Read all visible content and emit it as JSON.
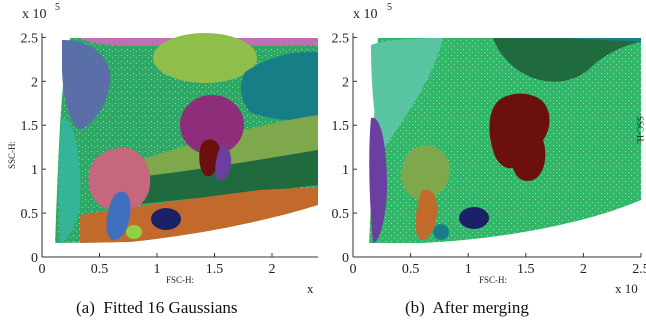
{
  "chart_data": [
    {
      "type": "scatter",
      "panel_label": "(a)",
      "caption": "Fitted 16 Gaussians",
      "xlabel": "FSC-H:",
      "ylabel": "SSC-H:",
      "x_exponent_label": "x",
      "y_exponent_label": "x 10",
      "y_exponent_power": "5",
      "xlim": [
        0,
        2.4
      ],
      "ylim": [
        0,
        2.55
      ],
      "x_ticks": [
        "0",
        "0.5",
        "1",
        "1.5",
        "2"
      ],
      "x_tick_values": [
        0,
        0.5,
        1,
        1.5,
        2
      ],
      "y_ticks": [
        "0",
        "0.5",
        "1",
        "1.5",
        "2",
        "2.5"
      ],
      "y_tick_values": [
        0,
        0.5,
        1,
        1.5,
        2,
        2.5
      ],
      "background_color": "#2fa866",
      "colors": {
        "pink_top": "#c06fb0",
        "olive_top": "#8fbf4a",
        "slate_blue": "#5a6fa8",
        "teal_dark": "#177d86",
        "teal_left": "#34b59a",
        "magenta": "#8e2d7a",
        "olive_band": "#7fa84d",
        "dark_green_band": "#1f6b3e",
        "orange_band": "#c26a2c",
        "pink_mid": "#c7677e",
        "blue_mid": "#3f6fbf",
        "navy": "#1b2166",
        "dark_red": "#6b0f0f",
        "purple": "#6a3fa0",
        "light_green": "#8fd13f"
      }
    },
    {
      "type": "scatter",
      "panel_label": "(b)",
      "caption": "After merging",
      "xlabel": "FSC-H:",
      "ylabel": "SSC-H:",
      "x_exponent_label": "x 10",
      "y_exponent_label": "x 10",
      "y_exponent_power": "5",
      "xlim": [
        0,
        2.5
      ],
      "ylim": [
        0,
        2.55
      ],
      "x_ticks": [
        "0",
        "0.5",
        "1",
        "1.5",
        "2",
        "2.5"
      ],
      "x_tick_values": [
        0,
        0.5,
        1,
        1.5,
        2,
        2.5
      ],
      "y_ticks": [
        "0",
        "0.5",
        "1",
        "1.5",
        "2",
        "2.5"
      ],
      "y_tick_values": [
        0,
        0.5,
        1,
        1.5,
        2,
        2.5
      ],
      "background_color": "#2fb86a",
      "colors": {
        "light_teal": "#58c4a2",
        "dark_green": "#1f6b3e",
        "teal_dark": "#177d86",
        "purple": "#6a3fa0",
        "olive": "#7fa84d",
        "orange": "#c26a2c",
        "navy": "#1b2166",
        "teal_small": "#177d86",
        "dark_red": "#6b0f0f"
      }
    }
  ]
}
